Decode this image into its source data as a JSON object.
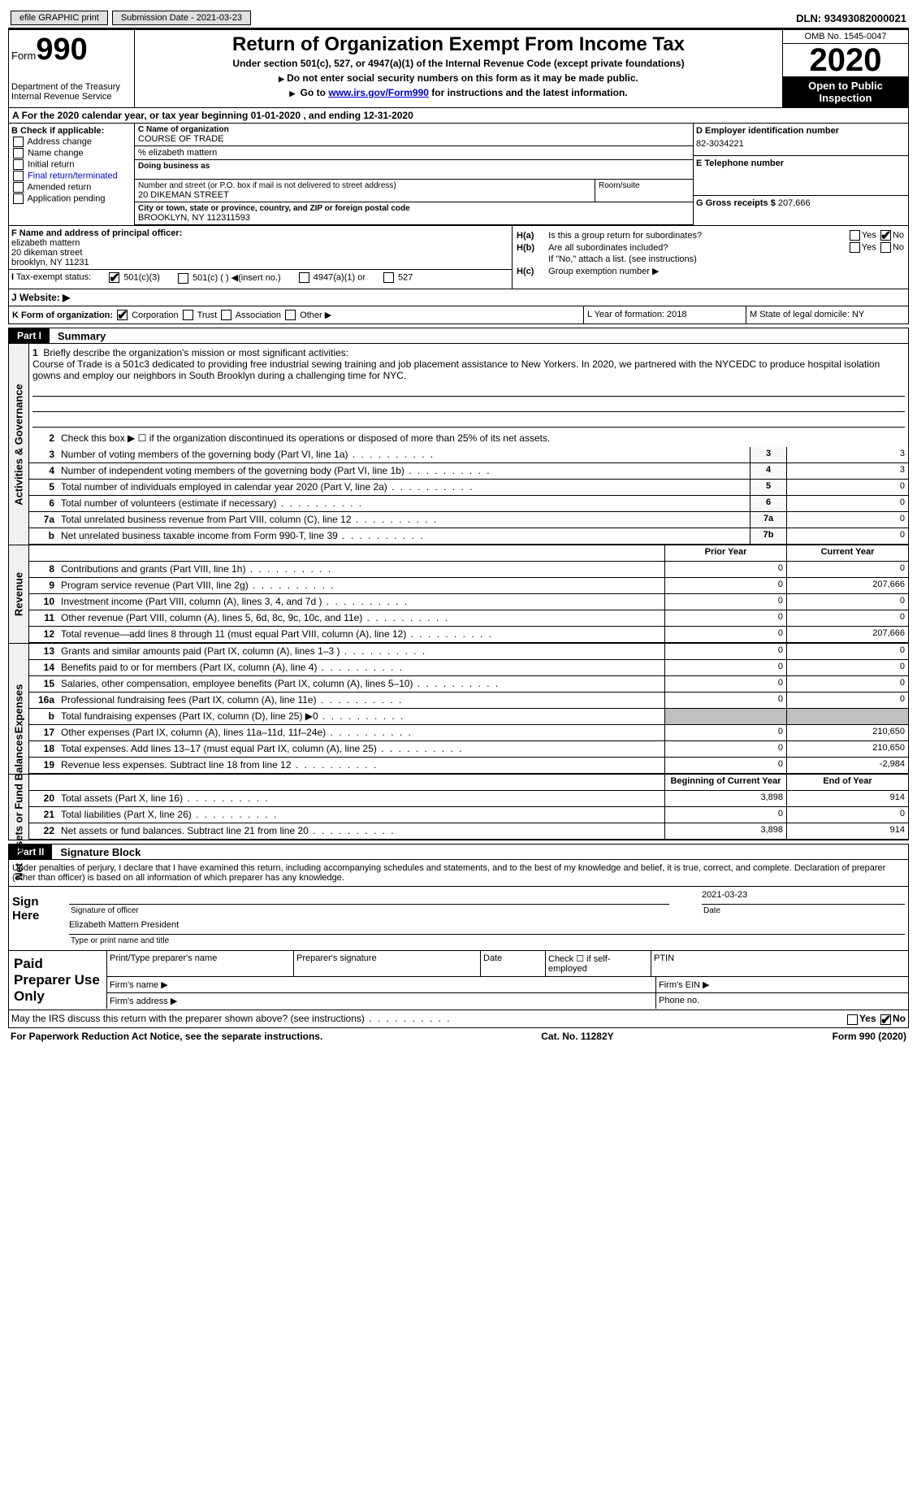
{
  "topbar": {
    "efile": "efile GRAPHIC print",
    "submission": "Submission Date - 2021-03-23",
    "dln": "DLN: 93493082000021"
  },
  "header": {
    "form_label": "Form",
    "form_num": "990",
    "dept": "Department of the Treasury\nInternal Revenue Service",
    "title": "Return of Organization Exempt From Income Tax",
    "subtitle": "Under section 501(c), 527, or 4947(a)(1) of the Internal Revenue Code (except private foundations)",
    "line1": "Do not enter social security numbers on this form as it may be made public.",
    "line2_pre": "Go to ",
    "line2_link": "www.irs.gov/Form990",
    "line2_post": " for instructions and the latest information.",
    "omb": "OMB No. 1545-0047",
    "year": "2020",
    "inspect": "Open to Public Inspection"
  },
  "sectionA": "For the 2020 calendar year, or tax year beginning 01-01-2020    , and ending 12-31-2020",
  "boxB": {
    "title": "B Check if applicable:",
    "items": [
      "Address change",
      "Name change",
      "Initial return",
      "Final return/terminated",
      "Amended return",
      "Application pending"
    ]
  },
  "boxC": {
    "label": "C Name of organization",
    "name": "COURSE OF TRADE",
    "care": "% elizabeth mattern",
    "dba_label": "Doing business as",
    "addr_label": "Number and street (or P.O. box if mail is not delivered to street address)",
    "addr": "20 DIKEMAN STREET",
    "room_label": "Room/suite",
    "city_label": "City or town, state or province, country, and ZIP or foreign postal code",
    "city": "BROOKLYN, NY  112311593"
  },
  "boxD": {
    "label": "D Employer identification number",
    "val": "82-3034221"
  },
  "boxE": {
    "label": "E Telephone number"
  },
  "boxG": {
    "label": "G Gross receipts $",
    "val": "207,666"
  },
  "boxF": {
    "label": "F  Name and address of principal officer:",
    "name": "elizabeth mattern",
    "addr1": "20 dikeman street",
    "addr2": "brooklyn, NY  11231"
  },
  "boxH": {
    "a_label": "Is this a group return for subordinates?",
    "b_label": "Are all subordinates included?",
    "no_note": "If \"No,\" attach a list. (see instructions)",
    "c_label": "Group exemption number ▶",
    "yes": "Yes",
    "no": "No"
  },
  "boxI": {
    "label": "Tax-exempt status:",
    "opts": [
      "501(c)(3)",
      "501(c) (  ) ◀(insert no.)",
      "4947(a)(1) or",
      "527"
    ]
  },
  "boxJ": "J   Website: ▶",
  "boxK": {
    "label": "K Form of organization:",
    "opts": [
      "Corporation",
      "Trust",
      "Association",
      "Other ▶"
    ]
  },
  "boxL": "L Year of formation: 2018",
  "boxM": "M State of legal domicile: NY",
  "part1": {
    "tag": "Part I",
    "title": "Summary"
  },
  "mission_label": "Briefly describe the organization's mission or most significant activities:",
  "mission": "Course of Trade is a 501c3 dedicated to providing free industrial sewing training and job placement assistance to New Yorkers. In 2020, we partnered with the NYCEDC to produce hospital isolation gowns and employ our neighbors in South Brooklyn during a challenging time for NYC.",
  "line2": "Check this box ▶ ☐  if the organization discontinued its operations or disposed of more than 25% of its net assets.",
  "sideLabels": [
    "Activities & Governance",
    "Revenue",
    "Expenses",
    "Net Assets or Fund Balances"
  ],
  "govRows": [
    {
      "n": "3",
      "t": "Number of voting members of the governing body (Part VI, line 1a)",
      "c1": "3",
      "v": "3"
    },
    {
      "n": "4",
      "t": "Number of independent voting members of the governing body (Part VI, line 1b)",
      "c1": "4",
      "v": "3"
    },
    {
      "n": "5",
      "t": "Total number of individuals employed in calendar year 2020 (Part V, line 2a)",
      "c1": "5",
      "v": "0"
    },
    {
      "n": "6",
      "t": "Total number of volunteers (estimate if necessary)",
      "c1": "6",
      "v": "0"
    },
    {
      "n": "7a",
      "t": "Total unrelated business revenue from Part VIII, column (C), line 12",
      "c1": "7a",
      "v": "0"
    },
    {
      "n": "b",
      "t": "Net unrelated business taxable income from Form 990-T, line 39",
      "c1": "7b",
      "v": "0"
    }
  ],
  "colHdrs": {
    "prior": "Prior Year",
    "current": "Current Year"
  },
  "revRows": [
    {
      "n": "8",
      "t": "Contributions and grants (Part VIII, line 1h)",
      "p": "0",
      "c": "0"
    },
    {
      "n": "9",
      "t": "Program service revenue (Part VIII, line 2g)",
      "p": "0",
      "c": "207,666"
    },
    {
      "n": "10",
      "t": "Investment income (Part VIII, column (A), lines 3, 4, and 7d )",
      "p": "0",
      "c": "0"
    },
    {
      "n": "11",
      "t": "Other revenue (Part VIII, column (A), lines 5, 6d, 8c, 9c, 10c, and 11e)",
      "p": "0",
      "c": "0"
    },
    {
      "n": "12",
      "t": "Total revenue—add lines 8 through 11 (must equal Part VIII, column (A), line 12)",
      "p": "0",
      "c": "207,666"
    }
  ],
  "expRows": [
    {
      "n": "13",
      "t": "Grants and similar amounts paid (Part IX, column (A), lines 1–3 )",
      "p": "0",
      "c": "0"
    },
    {
      "n": "14",
      "t": "Benefits paid to or for members (Part IX, column (A), line 4)",
      "p": "0",
      "c": "0"
    },
    {
      "n": "15",
      "t": "Salaries, other compensation, employee benefits (Part IX, column (A), lines 5–10)",
      "p": "0",
      "c": "0"
    },
    {
      "n": "16a",
      "t": "Professional fundraising fees (Part IX, column (A), line 11e)",
      "p": "0",
      "c": "0"
    },
    {
      "n": "b",
      "t": "Total fundraising expenses (Part IX, column (D), line 25) ▶0",
      "p": "grey",
      "c": "grey"
    },
    {
      "n": "17",
      "t": "Other expenses (Part IX, column (A), lines 11a–11d, 11f–24e)",
      "p": "0",
      "c": "210,650"
    },
    {
      "n": "18",
      "t": "Total expenses. Add lines 13–17 (must equal Part IX, column (A), line 25)",
      "p": "0",
      "c": "210,650"
    },
    {
      "n": "19",
      "t": "Revenue less expenses. Subtract line 18 from line 12",
      "p": "0",
      "c": "-2,984"
    }
  ],
  "balHdrs": {
    "begin": "Beginning of Current Year",
    "end": "End of Year"
  },
  "balRows": [
    {
      "n": "20",
      "t": "Total assets (Part X, line 16)",
      "p": "3,898",
      "c": "914"
    },
    {
      "n": "21",
      "t": "Total liabilities (Part X, line 26)",
      "p": "0",
      "c": "0"
    },
    {
      "n": "22",
      "t": "Net assets or fund balances. Subtract line 21 from line 20",
      "p": "3,898",
      "c": "914"
    }
  ],
  "part2": {
    "tag": "Part II",
    "title": "Signature Block"
  },
  "sigText": "Under penalties of perjury, I declare that I have examined this return, including accompanying schedules and statements, and to the best of my knowledge and belief, it is true, correct, and complete. Declaration of preparer (other than officer) is based on all information of which preparer has any knowledge.",
  "sign": {
    "here": "Sign Here",
    "sig_label": "Signature of officer",
    "date": "2021-03-23",
    "date_label": "Date",
    "name": "Elizabeth Mattern  President",
    "name_label": "Type or print name and title"
  },
  "paid": {
    "title": "Paid Preparer Use Only",
    "r1": [
      "Print/Type preparer's name",
      "Preparer's signature",
      "Date",
      "Check ☐ if self-employed",
      "PTIN"
    ],
    "firm_name": "Firm's name   ▶",
    "firm_ein": "Firm's EIN ▶",
    "firm_addr": "Firm's address ▶",
    "phone": "Phone no."
  },
  "footer": {
    "discuss": "May the IRS discuss this return with the preparer shown above? (see instructions)",
    "paperwork": "For Paperwork Reduction Act Notice, see the separate instructions.",
    "cat": "Cat. No. 11282Y",
    "formref": "Form 990 (2020)"
  }
}
